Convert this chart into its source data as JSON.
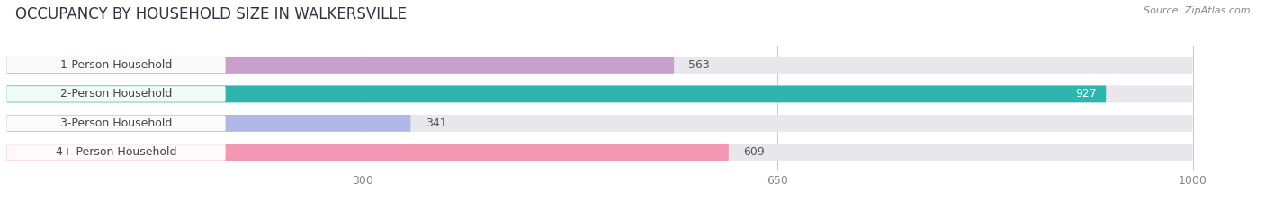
{
  "title": "OCCUPANCY BY HOUSEHOLD SIZE IN WALKERSVILLE",
  "source": "Source: ZipAtlas.com",
  "categories": [
    "1-Person Household",
    "2-Person Household",
    "3-Person Household",
    "4+ Person Household"
  ],
  "values": [
    563,
    927,
    341,
    609
  ],
  "bar_colors": [
    "#c9a0cc",
    "#2db5ae",
    "#b0b8e8",
    "#f498b6"
  ],
  "xlim_data": [
    0,
    1050
  ],
  "x_max": 1000,
  "xticks": [
    300,
    650,
    1000
  ],
  "background_color": "#ffffff",
  "bar_bg_color": "#e8e8ec",
  "title_fontsize": 12,
  "source_fontsize": 8,
  "label_fontsize": 9,
  "value_fontsize": 9
}
